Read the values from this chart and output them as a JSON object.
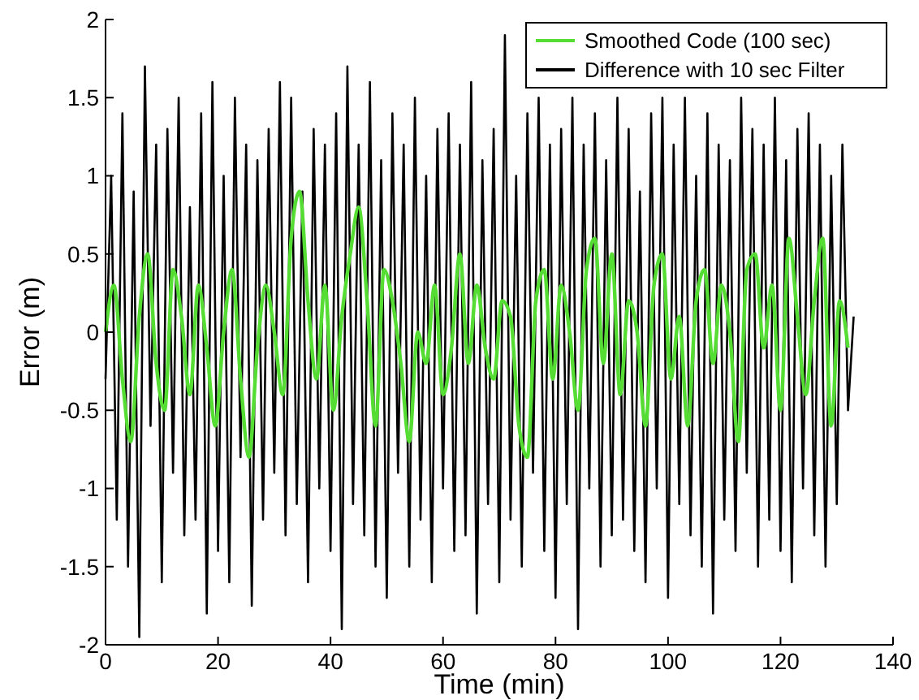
{
  "chart_data": {
    "type": "line",
    "xlabel": "Time (min)",
    "ylabel": "Error (m)",
    "xlim": [
      0,
      140
    ],
    "xticks": [
      0,
      20,
      40,
      60,
      80,
      100,
      120,
      140
    ],
    "ylim": [
      -2,
      2
    ],
    "yticks": [
      -2,
      -1.5,
      -1,
      -0.5,
      0,
      0.5,
      1,
      1.5,
      2
    ],
    "grid": false,
    "legend": "top right",
    "series": [
      {
        "name": "Smoothed Code (100 sec)",
        "color": "#55dd33",
        "x": [
          0,
          1.5,
          3,
          4.5,
          6,
          7.5,
          9,
          10.5,
          12,
          13.5,
          15,
          16.5,
          18,
          19.5,
          21,
          22.5,
          24,
          25.5,
          27,
          28.5,
          30,
          31.5,
          33,
          34.5,
          36,
          37.5,
          39,
          40.5,
          42,
          43.5,
          45,
          46.5,
          48,
          49.5,
          51,
          52.5,
          54,
          55.5,
          57,
          58.5,
          60,
          61.5,
          63,
          64.5,
          66,
          67.5,
          69,
          70.5,
          72,
          73.5,
          75,
          76.5,
          78,
          79.5,
          81,
          82.5,
          84,
          85.5,
          87,
          88.5,
          90,
          91.5,
          93,
          94.5,
          96,
          97.5,
          99,
          100.5,
          102,
          103.5,
          105,
          106.5,
          108,
          109.5,
          111,
          112.5,
          114,
          115.5,
          117,
          118.5,
          120,
          121.5,
          123,
          124.5,
          126,
          127.5,
          129,
          130.5,
          132
        ],
        "values": [
          0.0,
          0.3,
          -0.3,
          -0.7,
          0.1,
          0.5,
          -0.2,
          -0.5,
          0.4,
          0.1,
          -0.4,
          0.3,
          -0.1,
          -0.6,
          0.0,
          0.4,
          -0.3,
          -0.8,
          -0.1,
          0.3,
          0.0,
          -0.4,
          0.6,
          0.9,
          0.2,
          -0.3,
          0.3,
          -0.5,
          0.1,
          0.5,
          0.8,
          0.2,
          -0.6,
          0.4,
          0.2,
          -0.2,
          -0.7,
          0.0,
          -0.2,
          0.3,
          -0.4,
          -0.1,
          0.5,
          -0.2,
          0.3,
          -0.1,
          -0.3,
          0.2,
          0.1,
          -0.6,
          -0.8,
          0.2,
          0.4,
          -0.3,
          0.3,
          0.0,
          -0.5,
          0.4,
          0.6,
          -0.2,
          0.5,
          -0.4,
          0.2,
          0.0,
          -0.6,
          0.3,
          0.5,
          -0.3,
          0.1,
          -0.6,
          0.2,
          0.4,
          -0.2,
          0.3,
          0.0,
          -0.7,
          0.4,
          0.5,
          -0.1,
          0.3,
          -0.5,
          0.6,
          0.1,
          -0.4,
          0.2,
          0.6,
          -0.6,
          0.2,
          -0.1
        ]
      },
      {
        "name": "Difference with 10 sec Filter",
        "color": "#000000",
        "x": [
          0,
          1,
          2,
          3,
          4,
          5,
          6,
          7,
          8,
          9,
          10,
          11,
          12,
          13,
          14,
          15,
          16,
          17,
          18,
          19,
          20,
          21,
          22,
          23,
          24,
          25,
          26,
          27,
          28,
          29,
          30,
          31,
          32,
          33,
          34,
          35,
          36,
          37,
          38,
          39,
          40,
          41,
          42,
          43,
          44,
          45,
          46,
          47,
          48,
          49,
          50,
          51,
          52,
          53,
          54,
          55,
          56,
          57,
          58,
          59,
          60,
          61,
          62,
          63,
          64,
          65,
          66,
          67,
          68,
          69,
          70,
          71,
          72,
          73,
          74,
          75,
          76,
          77,
          78,
          79,
          80,
          81,
          82,
          83,
          84,
          85,
          86,
          87,
          88,
          89,
          90,
          91,
          92,
          93,
          94,
          95,
          96,
          97,
          98,
          99,
          100,
          101,
          102,
          103,
          104,
          105,
          106,
          107,
          108,
          109,
          110,
          111,
          112,
          113,
          114,
          115,
          116,
          117,
          118,
          119,
          120,
          121,
          122,
          123,
          124,
          125,
          126,
          127,
          128,
          129,
          130,
          131,
          132,
          133
        ],
        "values": [
          -0.3,
          1.0,
          -1.2,
          1.4,
          -1.5,
          0.9,
          -1.95,
          1.7,
          -0.6,
          1.2,
          -1.6,
          1.3,
          -0.9,
          1.5,
          -1.3,
          0.8,
          -1.2,
          1.4,
          -1.8,
          1.6,
          -1.4,
          1.0,
          -1.6,
          1.5,
          -0.8,
          1.2,
          -1.75,
          1.1,
          -1.2,
          1.3,
          -0.9,
          1.6,
          -1.3,
          1.5,
          -1.1,
          0.9,
          -1.6,
          1.3,
          -1.0,
          1.2,
          -1.4,
          1.4,
          -1.9,
          1.7,
          -1.1,
          1.2,
          -1.3,
          1.6,
          -1.5,
          1.1,
          -1.7,
          1.4,
          -0.9,
          1.2,
          -1.5,
          1.5,
          -1.2,
          1.0,
          -1.6,
          1.3,
          -1.0,
          1.4,
          -1.4,
          1.2,
          -1.3,
          1.6,
          -1.8,
          1.1,
          -1.1,
          1.3,
          -1.6,
          1.9,
          -1.2,
          1.0,
          -1.5,
          1.4,
          -0.9,
          1.5,
          -1.4,
          1.2,
          -1.7,
          1.3,
          -1.1,
          1.5,
          -1.9,
          1.2,
          -1.0,
          1.4,
          -1.5,
          1.1,
          -1.3,
          1.5,
          -1.2,
          1.3,
          -1.4,
          0.9,
          -1.6,
          1.4,
          -1.0,
          1.5,
          -1.7,
          1.2,
          -1.1,
          1.5,
          -1.3,
          1.0,
          -1.5,
          1.4,
          -1.8,
          1.2,
          -1.2,
          1.1,
          -1.4,
          1.5,
          -0.9,
          1.3,
          -1.5,
          1.2,
          -1.2,
          1.5,
          -1.4,
          1.1,
          -1.6,
          1.3,
          -1.0,
          1.4,
          -1.3,
          1.2,
          -1.5,
          1.0,
          -1.1,
          1.2,
          -0.5,
          0.1
        ]
      }
    ]
  }
}
